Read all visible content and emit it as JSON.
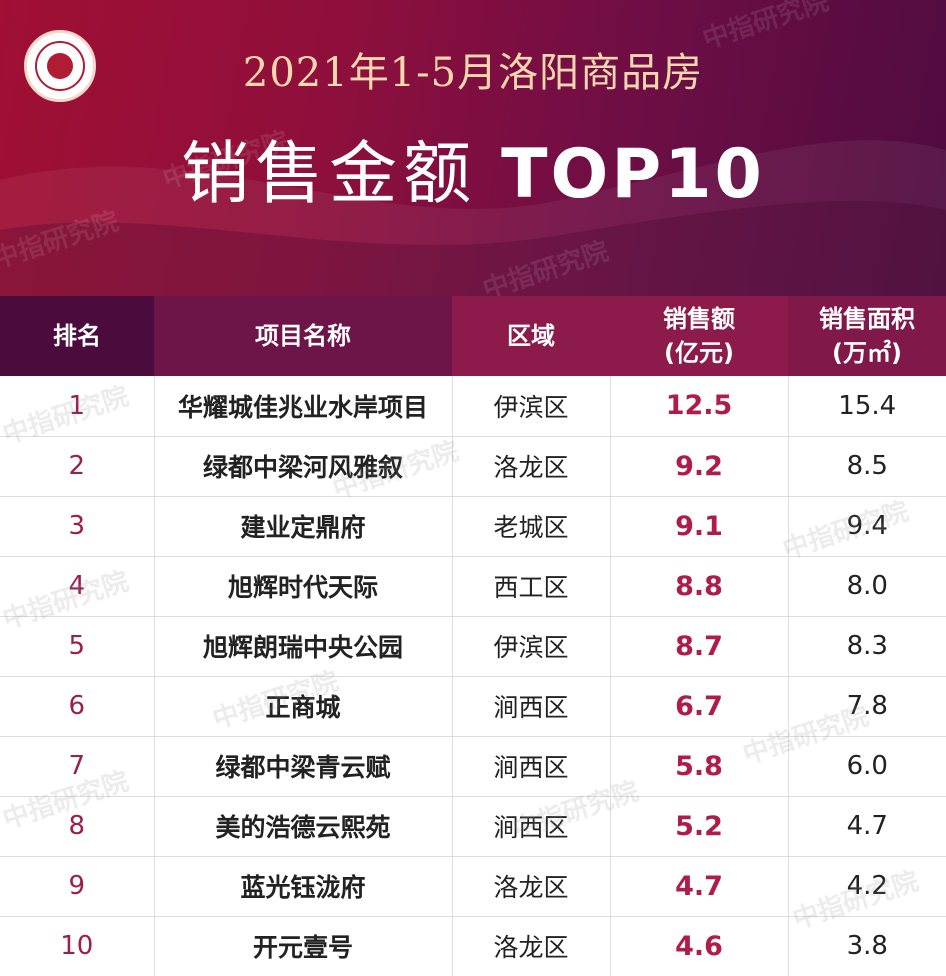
{
  "header": {
    "title_line1": "2021年1-5月洛阳商品房",
    "title_line2": "销售金额",
    "title_top": "TOP10",
    "watermark": "中指研究院"
  },
  "colors": {
    "banner_left": "#a10f33",
    "banner_right": "#4e0b40",
    "title_gold": "#f6d7ae",
    "amount_accent": "#b01c4a"
  },
  "table": {
    "columns": [
      {
        "line1": "排名",
        "line2": ""
      },
      {
        "line1": "项目名称",
        "line2": ""
      },
      {
        "line1": "区域",
        "line2": ""
      },
      {
        "line1": "销售额",
        "line2": "(亿元)"
      },
      {
        "line1": "销售面积",
        "line2": "(万㎡)"
      }
    ],
    "rows": [
      {
        "rank": "1",
        "name": "华耀城佳兆业水岸项目",
        "region": "伊滨区",
        "amount": "12.5",
        "area": "15.4"
      },
      {
        "rank": "2",
        "name": "绿都中梁河风雅叙",
        "region": "洛龙区",
        "amount": "9.2",
        "area": "8.5"
      },
      {
        "rank": "3",
        "name": "建业定鼎府",
        "region": "老城区",
        "amount": "9.1",
        "area": "9.4"
      },
      {
        "rank": "4",
        "name": "旭辉时代天际",
        "region": "西工区",
        "amount": "8.8",
        "area": "8.0"
      },
      {
        "rank": "5",
        "name": "旭辉朗瑞中央公园",
        "region": "伊滨区",
        "amount": "8.7",
        "area": "8.3"
      },
      {
        "rank": "6",
        "name": "正商城",
        "region": "涧西区",
        "amount": "6.7",
        "area": "7.8"
      },
      {
        "rank": "7",
        "name": "绿都中梁青云赋",
        "region": "涧西区",
        "amount": "5.8",
        "area": "6.0"
      },
      {
        "rank": "8",
        "name": "美的浩德云熙苑",
        "region": "涧西区",
        "amount": "5.2",
        "area": "4.7"
      },
      {
        "rank": "9",
        "name": "蓝光钰泷府",
        "region": "洛龙区",
        "amount": "4.7",
        "area": "4.2"
      },
      {
        "rank": "10",
        "name": "开元壹号",
        "region": "洛龙区",
        "amount": "4.6",
        "area": "3.8"
      }
    ]
  }
}
